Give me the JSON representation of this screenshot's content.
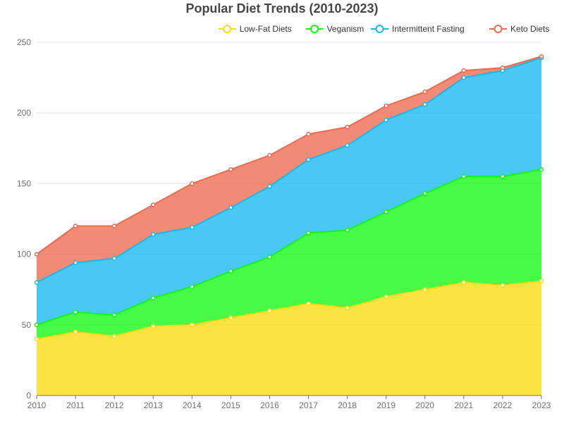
{
  "chart_data": {
    "type": "area",
    "stacked": true,
    "title": "Popular Diet Trends (2010-2023)",
    "xlabel": "",
    "ylabel": "",
    "x": [
      "2010",
      "2011",
      "2012",
      "2013",
      "2014",
      "2015",
      "2016",
      "2017",
      "2018",
      "2019",
      "2020",
      "2021",
      "2022",
      "2023"
    ],
    "ylim": [
      0,
      250
    ],
    "yticks": [
      0,
      50,
      100,
      150,
      200,
      250
    ],
    "grid": true,
    "legend_position": "top-right",
    "series": [
      {
        "name": "Low-Fat Diets",
        "color": "#fbdb0f",
        "values": [
          40,
          45,
          42,
          49,
          50,
          55,
          60,
          65,
          62,
          70,
          75,
          80,
          78,
          81
        ]
      },
      {
        "name": "Veganism",
        "color": "#12f812",
        "values": [
          10,
          14,
          15,
          20,
          27,
          33,
          38,
          50,
          55,
          60,
          68,
          75,
          77,
          79
        ]
      },
      {
        "name": "Intermittent Fasting",
        "color": "#14b9f0",
        "values": [
          30,
          35,
          40,
          45,
          42,
          45,
          50,
          52,
          60,
          65,
          63,
          70,
          75,
          79
        ]
      },
      {
        "name": "Keto Diets",
        "color": "#ee6a4f",
        "values": [
          20,
          26,
          23,
          21,
          31,
          27,
          22,
          18,
          13,
          10,
          9,
          5,
          2,
          1
        ]
      }
    ]
  }
}
